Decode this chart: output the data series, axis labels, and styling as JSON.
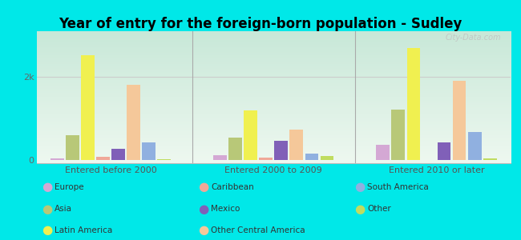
{
  "title": "Year of entry for the foreign-born population - Sudley",
  "groups": [
    "Entered before 2000",
    "Entered 2000 to 2009",
    "Entered 2010 or later"
  ],
  "categories": [
    "Europe",
    "Asia",
    "Latin America",
    "Caribbean",
    "Mexico",
    "Other Central America",
    "South America",
    "Other"
  ],
  "colors": {
    "Europe": "#d4a8d4",
    "Asia": "#b8c878",
    "Latin America": "#f0f050",
    "Caribbean": "#f0a898",
    "Mexico": "#8060b8",
    "Other Central America": "#f5c89a",
    "South America": "#90b0e0",
    "Other": "#c0dc60"
  },
  "values": {
    "Entered before 2000": {
      "Europe": 40,
      "Asia": 600,
      "Latin America": 2520,
      "Caribbean": 80,
      "Mexico": 260,
      "Other Central America": 1800,
      "South America": 420,
      "Other": 25
    },
    "Entered 2000 to 2009": {
      "Europe": 120,
      "Asia": 540,
      "Latin America": 1200,
      "Caribbean": 50,
      "Mexico": 460,
      "Other Central America": 730,
      "South America": 160,
      "Other": 100
    },
    "Entered 2010 or later": {
      "Europe": 360,
      "Asia": 1220,
      "Latin America": 2700,
      "Caribbean": 0,
      "Mexico": 420,
      "Other Central America": 1900,
      "South America": 670,
      "Other": 45
    }
  },
  "ytick_value": 2000,
  "background_color": "#00e8e8",
  "watermark": "City-Data.com",
  "legend_order": [
    "Europe",
    "Asia",
    "Latin America",
    "Caribbean",
    "Mexico",
    "Other Central America",
    "South America",
    "Other"
  ]
}
